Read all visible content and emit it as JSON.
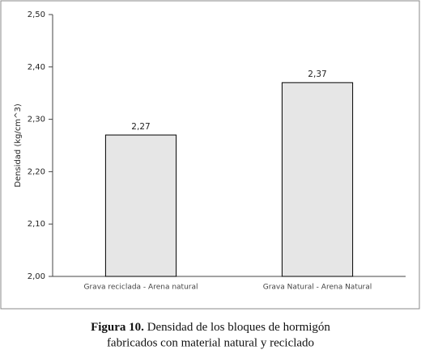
{
  "chart_data": {
    "type": "bar",
    "y_label": "Densidad (kg/cm^3)",
    "categories": [
      "Grava reciclada - Arena natural",
      "Grava Natural - Arena Natural"
    ],
    "values": [
      2.27,
      2.37
    ],
    "value_labels": [
      "2,27",
      "2,37"
    ],
    "color": "#e6e6e6",
    "ylim": [
      2.0,
      2.5
    ],
    "yticks": [
      {
        "value": 2.0,
        "label": "2,00"
      },
      {
        "value": 2.1,
        "label": "2,10"
      },
      {
        "value": 2.2,
        "label": "2,20"
      },
      {
        "value": 2.3,
        "label": "2,30"
      },
      {
        "value": 2.4,
        "label": "2,40"
      },
      {
        "value": 2.5,
        "label": "2,50"
      }
    ],
    "grid": false
  },
  "caption": {
    "label": "Figura 10.",
    "line1": "Densidad de los bloques de hormigón",
    "line2": "fabricados con material natural y reciclado"
  }
}
